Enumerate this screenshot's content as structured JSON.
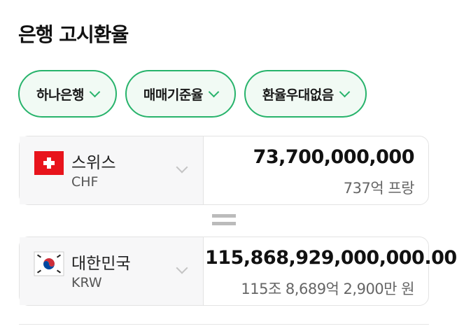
{
  "title": "은행 고시환율",
  "filters": [
    {
      "label": "하나은행"
    },
    {
      "label": "매매기준율"
    },
    {
      "label": "환율우대없음"
    }
  ],
  "from": {
    "country": "스위스",
    "code": "CHF",
    "amount": "73,700,000,000",
    "amount_words": "737억 프랑",
    "flag": "swiss-flag-icon"
  },
  "to": {
    "country": "대한민국",
    "code": "KRW",
    "amount": "115,868,929,000,000.00",
    "amount_words": "115조 8,689억 2,900만 원",
    "flag": "korea-flag-icon"
  },
  "colors": {
    "accent": "#27b36b",
    "swiss_red": "#e8141c"
  }
}
